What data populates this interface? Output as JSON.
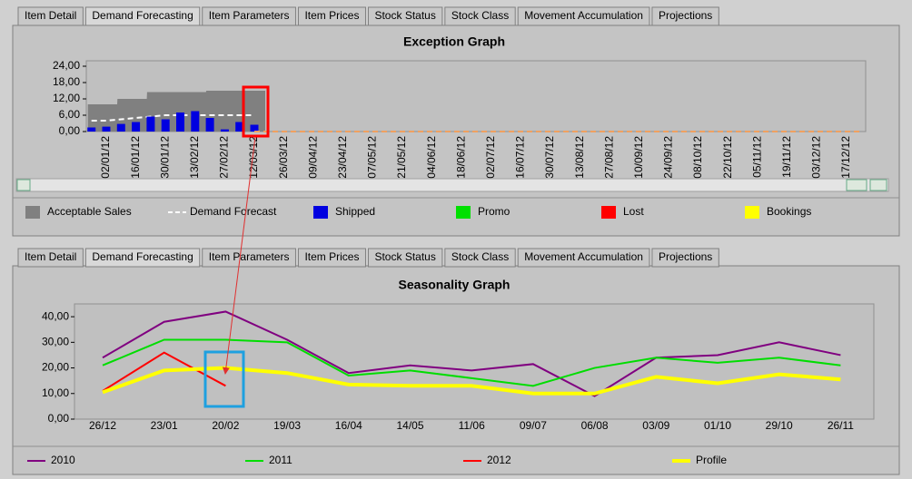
{
  "tabs_top": {
    "items": [
      "Item Detail",
      "Demand Forecasting",
      "Item Parameters",
      "Item Prices",
      "Stock Status",
      "Stock Class",
      "Movement Accumulation",
      "Projections"
    ],
    "active": 1
  },
  "tabs_bottom": {
    "items": [
      "Item Detail",
      "Demand Forecasting",
      "Item Parameters",
      "Item Prices",
      "Stock Status",
      "Stock Class",
      "Movement Accumulation",
      "Projections"
    ],
    "active": 1
  },
  "chart_data": [
    {
      "type": "bar",
      "title": "Exception Graph",
      "categories": [
        null,
        "02/01/12",
        null,
        "16/01/12",
        null,
        "30/01/12",
        null,
        "13/02/12",
        null,
        "27/02/12",
        null,
        "12/03/12",
        null,
        "26/03/12",
        null,
        "09/04/12",
        null,
        "23/04/12",
        null,
        "07/05/12",
        null,
        "21/05/12",
        null,
        "04/06/12",
        null,
        "18/06/12",
        null,
        "02/07/12",
        null,
        "16/07/12",
        null,
        "30/07/12",
        null,
        "13/08/12",
        null,
        "27/08/12",
        null,
        "10/09/12",
        null,
        "24/09/12",
        null,
        "08/10/12",
        null,
        "22/10/12",
        null,
        "05/11/12",
        null,
        "19/11/12",
        null,
        "03/12/12",
        null,
        "17/12/12",
        null
      ],
      "ylim": [
        0,
        26
      ],
      "yticks": [
        {
          "value": 0,
          "label": "0,00"
        },
        {
          "value": 6,
          "label": "6,00"
        },
        {
          "value": 12,
          "label": "12,00"
        },
        {
          "value": 18,
          "label": "18,00"
        },
        {
          "value": 24,
          "label": "24,00"
        }
      ],
      "series": [
        {
          "name": "Acceptable Sales",
          "color": "#808080",
          "kind": "area",
          "values": [
            10,
            10,
            12,
            12,
            14.5,
            14.5,
            14.5,
            14.5,
            15,
            15,
            15,
            15,
            null,
            null,
            null,
            null,
            null,
            null,
            null,
            null,
            null,
            null,
            null,
            null,
            null,
            null,
            null,
            null,
            null,
            null,
            null,
            null,
            null,
            null,
            null,
            null,
            null,
            null,
            null,
            null,
            null,
            null,
            null,
            null,
            null,
            null,
            null,
            null,
            null,
            null,
            null,
            null,
            null
          ]
        },
        {
          "name": "Demand Forecast",
          "color": "#ffffff",
          "kind": "dashed",
          "values": [
            4,
            4,
            4.5,
            5,
            5.5,
            6,
            6,
            6,
            6,
            6,
            6,
            6,
            null,
            null,
            null,
            null,
            null,
            null,
            null,
            null,
            null,
            null,
            null,
            null,
            null,
            null,
            null,
            null,
            null,
            null,
            null,
            null,
            null,
            null,
            null,
            null,
            null,
            null,
            null,
            null,
            null,
            null,
            null,
            null,
            null,
            null,
            null,
            null,
            null,
            null,
            null,
            null,
            null
          ]
        },
        {
          "name": "Shipped",
          "color": "#0000e0",
          "kind": "bar",
          "values": [
            1.5,
            1.8,
            2.8,
            3.5,
            5.5,
            4.5,
            7,
            7.5,
            5,
            0.8,
            3.5,
            2.5,
            null,
            null,
            null,
            null,
            null,
            null,
            null,
            null,
            null,
            null,
            null,
            null,
            null,
            null,
            null,
            null,
            null,
            null,
            null,
            null,
            null,
            null,
            null,
            null,
            null,
            null,
            null,
            null,
            null,
            null,
            null,
            null,
            null,
            null,
            null,
            null,
            null,
            null,
            null,
            null,
            null
          ]
        },
        {
          "color": "#f0a060",
          "kind": "dashed",
          "values": [
            null,
            null,
            null,
            null,
            null,
            null,
            null,
            null,
            null,
            null,
            null,
            0,
            0,
            0,
            0,
            0,
            0,
            0,
            0,
            0,
            0,
            0,
            0,
            0,
            0,
            0,
            0,
            0,
            0,
            0,
            0,
            0,
            0,
            0,
            0,
            0,
            0,
            0,
            0,
            0,
            0,
            0,
            0,
            0,
            0,
            0,
            0,
            0,
            0,
            0,
            0,
            0,
            0
          ]
        }
      ],
      "legend_extra": [
        {
          "name": "Promo",
          "color": "#00e000"
        },
        {
          "name": "Lost",
          "color": "#ff0000"
        },
        {
          "name": "Bookings",
          "color": "#ffff00"
        }
      ]
    },
    {
      "type": "line",
      "title": "Seasonality Graph",
      "categories": [
        "26/12",
        "23/01",
        "20/02",
        "19/03",
        "16/04",
        "14/05",
        "11/06",
        "09/07",
        "06/08",
        "03/09",
        "01/10",
        "29/10",
        "26/11"
      ],
      "ylim": [
        0,
        45
      ],
      "yticks": [
        {
          "value": 0,
          "label": "0,00"
        },
        {
          "value": 10,
          "label": "10,00"
        },
        {
          "value": 20,
          "label": "20,00"
        },
        {
          "value": 30,
          "label": "30,00"
        },
        {
          "value": 40,
          "label": "40,00"
        }
      ],
      "series": [
        {
          "name": "2010",
          "color": "#800080",
          "width": 2,
          "values": [
            24,
            38,
            42,
            31,
            18,
            21,
            19,
            21.5,
            9,
            24,
            25,
            30,
            25
          ]
        },
        {
          "name": "2011",
          "color": "#00dd00",
          "width": 2,
          "values": [
            21,
            31,
            31,
            30,
            17,
            19,
            16,
            13,
            20,
            24,
            22,
            24,
            21
          ]
        },
        {
          "name": "2012",
          "color": "#ff0000",
          "width": 2,
          "values": [
            11,
            26,
            13,
            null,
            null,
            null,
            null,
            null,
            null,
            null,
            null,
            null,
            null
          ]
        },
        {
          "name": "Profile",
          "color": "#ffff00",
          "width": 4,
          "values": [
            10.5,
            19,
            20,
            18,
            13.5,
            13,
            13,
            10,
            10,
            16.5,
            14,
            17.5,
            15.5
          ]
        }
      ]
    }
  ]
}
